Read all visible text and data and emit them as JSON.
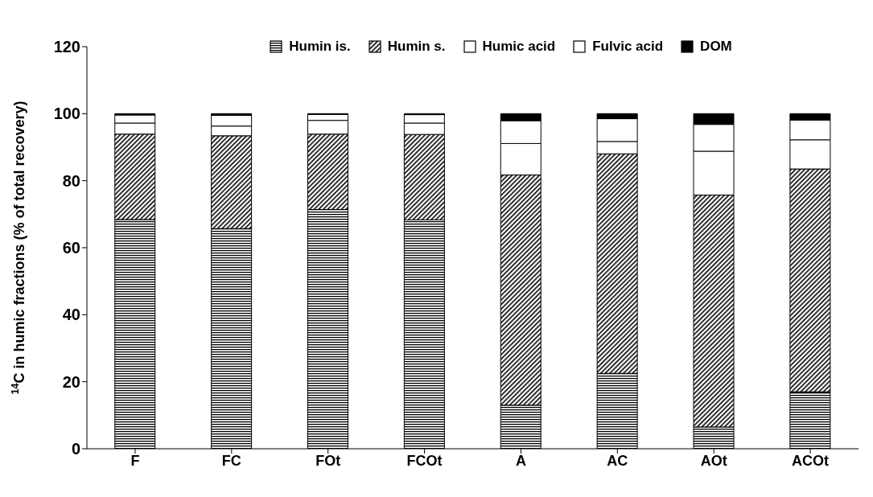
{
  "chart_data": {
    "type": "bar",
    "stacked": true,
    "ylabel": "$^{14}$C in humic fractions (% of total recovery)",
    "categories": [
      "F",
      "FC",
      "FOt",
      "FCOt",
      "A",
      "AC",
      "AOt",
      "ACOt"
    ],
    "series": [
      {
        "name": "Humin is.",
        "color": "#000000",
        "values": [
          68.4,
          65.7,
          71.4,
          68.3,
          13.0,
          22.5,
          6.5,
          17.0
        ]
      },
      {
        "name": "Humin s.",
        "color": "#000000",
        "values": [
          25.5,
          27.7,
          22.5,
          25.5,
          68.7,
          65.5,
          69.2,
          66.5
        ]
      },
      {
        "name": "Humic acid",
        "color": "#ffffff",
        "values": [
          3.3,
          2.9,
          4.1,
          3.4,
          9.4,
          3.7,
          13.1,
          8.7
        ]
      },
      {
        "name": "Fulvic acid",
        "color": "#ffffff",
        "values": [
          2.4,
          3.2,
          1.8,
          2.5,
          6.8,
          6.8,
          8.0,
          5.9
        ]
      },
      {
        "name": "DOM",
        "color": "#000000",
        "values": [
          0.4,
          0.5,
          0.2,
          0.3,
          2.1,
          1.5,
          3.2,
          1.9
        ]
      }
    ],
    "ylim": [
      0,
      120
    ],
    "yticks": [
      0,
      20,
      40,
      60,
      80,
      100,
      120
    ],
    "grid": false,
    "legend": "top"
  }
}
